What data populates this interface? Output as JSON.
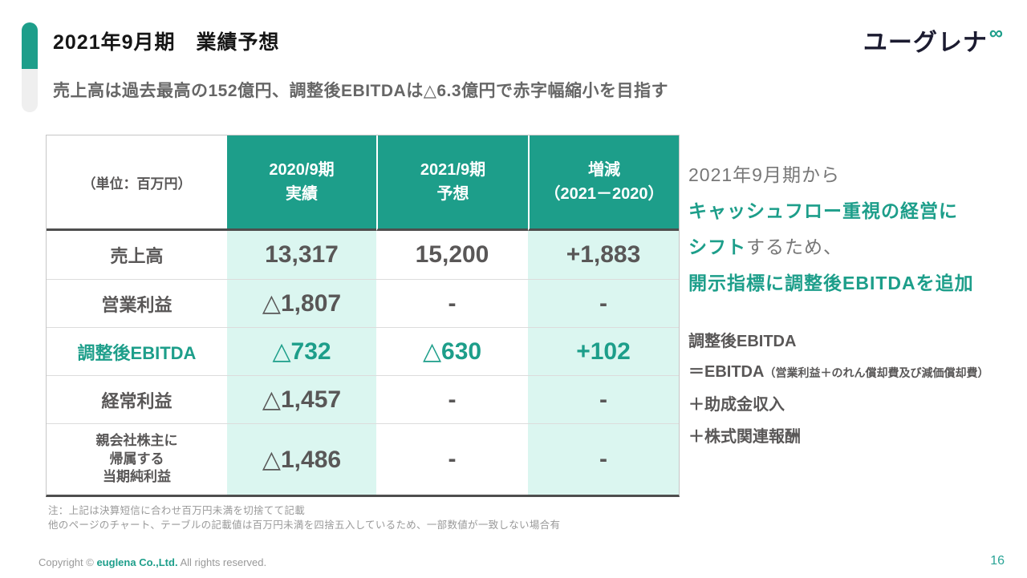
{
  "page": {
    "title": "2021年9月期　業績予想",
    "subtitle": "売上高は過去最高の152億円、調整後EBITDAは△6.3億円で赤字幅縮小を目指す",
    "page_number": "16"
  },
  "logo": {
    "text": "ユーグレナ",
    "mark": "∞"
  },
  "colors": {
    "teal": "#1d9e8a",
    "mint": "#dbf6f0",
    "text_dark": "#595757",
    "accent_gray": "#efefef"
  },
  "table": {
    "unit_label": "（単位：百万円）",
    "columns": [
      "2020/9期\n実績",
      "2021/9期\n予想",
      "増減\n（2021－2020）"
    ],
    "rows": [
      {
        "label": "売上高",
        "v1": "13,317",
        "v2": "15,200",
        "v3": "+1,883"
      },
      {
        "label": "営業利益",
        "v1": "△1,807",
        "v2": "-",
        "v3": "-"
      },
      {
        "label": "調整後EBITDA",
        "v1": "△732",
        "v2": "△630",
        "v3": "+102"
      },
      {
        "label": "経常利益",
        "v1": "△1,457",
        "v2": "-",
        "v3": "-"
      },
      {
        "label": "親会社株主に\n帰属する\n当期純利益",
        "v1": "△1,486",
        "v2": "-",
        "v3": "-"
      }
    ]
  },
  "highlights": {
    "line1": "2021年9月期から",
    "line2": "キャッシュフロー重視の経営に",
    "line3_em": "シフト",
    "line3_rest": "するため、",
    "line4": "開示指標に調整後EBITDAを追加"
  },
  "definition": {
    "title": "調整後EBITDA",
    "line1_main": "＝EBITDA",
    "line1_paren": "（営業利益＋のれん償却費及び減価償却費）",
    "line2": "＋助成金収入",
    "line3": "＋株式関連報酬"
  },
  "note": {
    "line1": "注：上記は決算短信に合わせ百万円未満を切捨てて記載",
    "line2": "他のページのチャート、テーブルの記載値は百万円未満を四捨五入しているため、一部数値が一致しない場合有"
  },
  "footer": {
    "copyright_prefix": "Copyright © ",
    "brand": "euglena Co.,Ltd.",
    "copyright_suffix": " All rights reserved."
  }
}
